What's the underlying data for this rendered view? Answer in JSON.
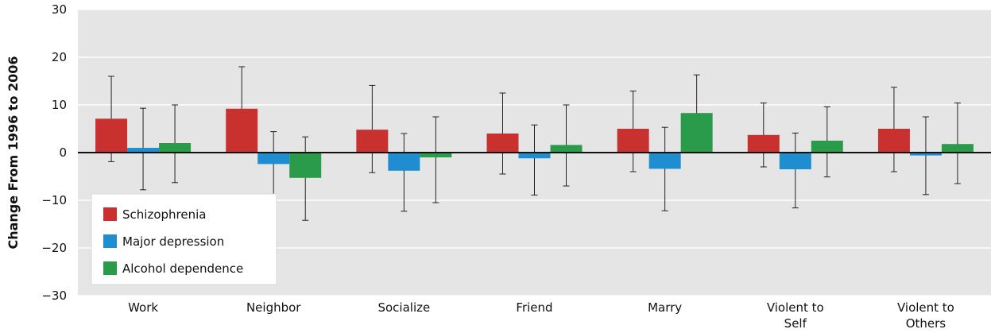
{
  "chart_data": {
    "type": "bar",
    "ylabel": "Change From 1996 to 2006",
    "ylim": [
      -30,
      30
    ],
    "yticks": [
      "30",
      "20",
      "10",
      "0",
      "−10",
      "−20",
      "−30"
    ],
    "grid": true,
    "legend_position": "bottom-left",
    "categories": [
      [
        "Work"
      ],
      [
        "Neighbor"
      ],
      [
        "Socialize"
      ],
      [
        "Friend"
      ],
      [
        "Marry"
      ],
      [
        "Violent to",
        "Self"
      ],
      [
        "Violent to",
        "Others"
      ]
    ],
    "series": [
      {
        "name": "Schizophrenia",
        "color": "#c8312e",
        "values": [
          7.1,
          9.2,
          4.8,
          4.0,
          5.0,
          3.7,
          5.0
        ],
        "err_low": [
          -1.9,
          0.4,
          -4.2,
          -4.5,
          -4.0,
          -3.0,
          -4.0
        ],
        "err_high": [
          16.0,
          18.0,
          14.1,
          12.5,
          12.9,
          10.4,
          13.7
        ]
      },
      {
        "name": "Major depression",
        "color": "#1f8ed0",
        "values": [
          1.0,
          -2.4,
          -3.8,
          -1.2,
          -3.4,
          -3.5,
          -0.6
        ],
        "err_low": [
          -7.8,
          -9.8,
          -12.3,
          -8.9,
          -12.2,
          -11.6,
          -8.8
        ],
        "err_high": [
          9.3,
          4.4,
          4.0,
          5.8,
          5.3,
          4.1,
          7.5
        ]
      },
      {
        "name": "Alcohol dependence",
        "color": "#2a9a4b",
        "values": [
          2.0,
          -5.3,
          -1.0,
          1.6,
          8.3,
          2.5,
          1.8
        ],
        "err_low": [
          -6.3,
          -14.2,
          -10.5,
          -7.0,
          0.2,
          -5.1,
          -6.5
        ],
        "err_high": [
          10.0,
          3.3,
          7.5,
          10.0,
          16.3,
          9.6,
          10.4
        ]
      }
    ]
  }
}
